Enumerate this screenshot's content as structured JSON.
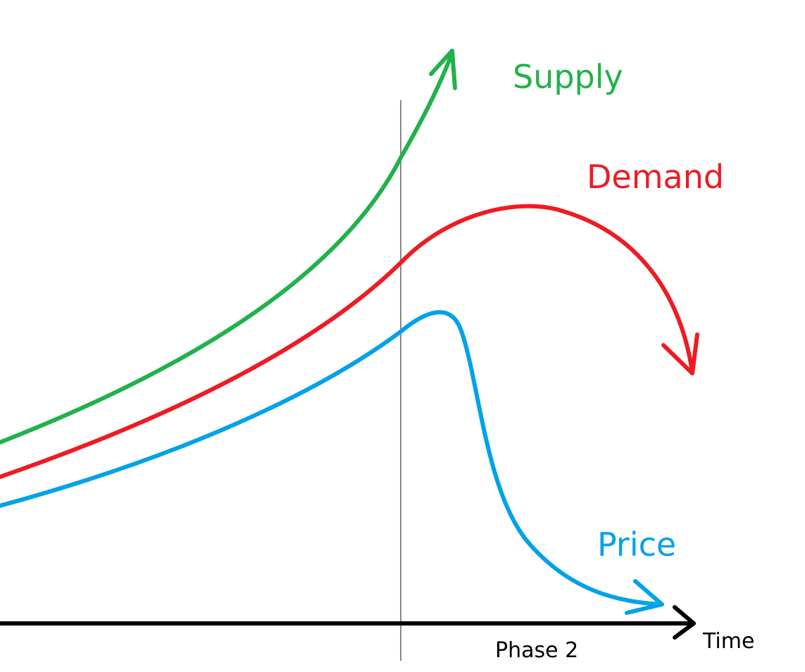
{
  "curves": [
    {
      "label": "Supply"
    },
    {
      "label": "Demand"
    },
    {
      "label": "Price"
    }
  ],
  "axis": {
    "label": "Time"
  },
  "phase": {
    "label": "Phase 2"
  }
}
